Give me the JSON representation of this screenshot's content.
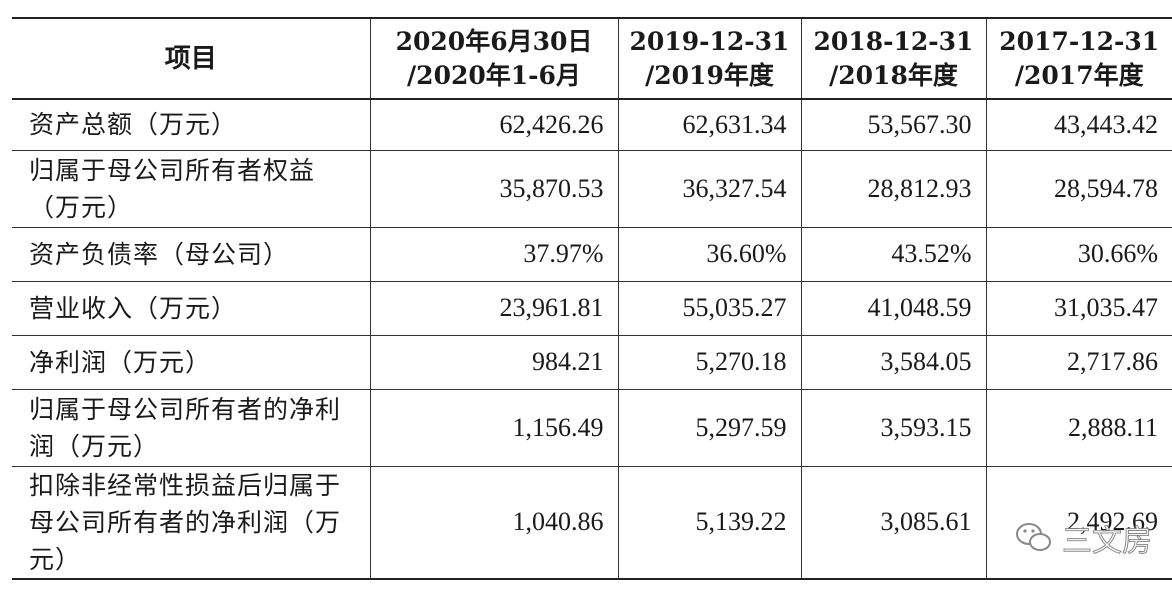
{
  "table": {
    "headers": [
      "项目",
      "2020年6月30日\n/2020年1-6月",
      "2019-12-31\n/2019年度",
      "2018-12-31\n/2018年度",
      "2017-12-31\n/2017年度"
    ],
    "rows": [
      {
        "label": "资产总额（万元）",
        "values": [
          "62,426.26",
          "62,631.34",
          "53,567.30",
          "43,443.42"
        ]
      },
      {
        "label": "归属于母公司所有者权益（万元）",
        "values": [
          "35,870.53",
          "36,327.54",
          "28,812.93",
          "28,594.78"
        ]
      },
      {
        "label": "资产负债率（母公司）",
        "values": [
          "37.97%",
          "36.60%",
          "43.52%",
          "30.66%"
        ]
      },
      {
        "label": "营业收入（万元）",
        "values": [
          "23,961.81",
          "55,035.27",
          "41,048.59",
          "31,035.47"
        ]
      },
      {
        "label": "净利润（万元）",
        "values": [
          "984.21",
          "5,270.18",
          "3,584.05",
          "2,717.86"
        ]
      },
      {
        "label": "归属于母公司所有者的净利润（万元）",
        "values": [
          "1,156.49",
          "5,297.59",
          "3,593.15",
          "2,888.11"
        ]
      },
      {
        "label": "扣除非经常性损益后归属于母公司所有者的净利润（万元）",
        "values": [
          "1,040.86",
          "5,139.22",
          "3,085.61",
          "2,492.69"
        ]
      }
    ]
  },
  "watermark": {
    "text": "三文房",
    "icon": "wechat-icon"
  }
}
